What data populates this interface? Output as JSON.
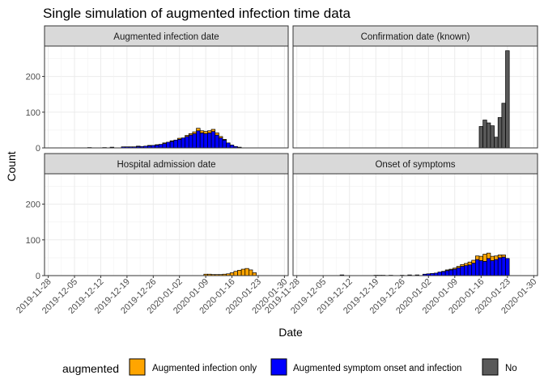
{
  "chart_data": {
    "type": "bar",
    "title": "Single simulation of augmented infection time data",
    "xlabel": "Date",
    "ylabel": "Count",
    "ylim": [
      0,
      285
    ],
    "yticks": [
      0,
      100,
      200
    ],
    "x_range": [
      "2019-11-27",
      "2020-01-31"
    ],
    "x_ticks": [
      "2019-11-28",
      "2019-12-05",
      "2019-12-12",
      "2019-12-19",
      "2019-12-26",
      "2020-01-02",
      "2020-01-09",
      "2020-01-16",
      "2020-01-23",
      "2020-01-30"
    ],
    "grid": true,
    "legend": {
      "title": "augmented",
      "placement": "bottom",
      "entries": [
        {
          "key": "augmented_infection_only",
          "label": "Augmented infection only",
          "color": "#FFA500"
        },
        {
          "key": "augmented_symptom_onset_and_infection",
          "label": "Augmented symptom onset and infection",
          "color": "#0000FF"
        },
        {
          "key": "no",
          "label": "No",
          "color": "#595959"
        }
      ]
    },
    "panels": [
      {
        "title": "Augmented infection date",
        "series": [
          {
            "name": "Augmented symptom onset and infection",
            "color": "#0000FF",
            "x": [
              "2019-12-09",
              "2019-12-13",
              "2019-12-15",
              "2019-12-18",
              "2019-12-19",
              "2019-12-20",
              "2019-12-21",
              "2019-12-22",
              "2019-12-23",
              "2019-12-24",
              "2019-12-25",
              "2019-12-26",
              "2019-12-27",
              "2019-12-28",
              "2019-12-29",
              "2019-12-30",
              "2019-12-31",
              "2020-01-01",
              "2020-01-02",
              "2020-01-03",
              "2020-01-04",
              "2020-01-05",
              "2020-01-06",
              "2020-01-07",
              "2020-01-08",
              "2020-01-09",
              "2020-01-10",
              "2020-01-11",
              "2020-01-12",
              "2020-01-13",
              "2020-01-14",
              "2020-01-15",
              "2020-01-16",
              "2020-01-17",
              "2020-01-18"
            ],
            "values": [
              1,
              1,
              2,
              3,
              3,
              3,
              3,
              4,
              4,
              5,
              6,
              7,
              8,
              10,
              12,
              16,
              18,
              22,
              24,
              28,
              32,
              36,
              40,
              48,
              42,
              40,
              42,
              46,
              36,
              28,
              22,
              14,
              8,
              4,
              2
            ]
          },
          {
            "name": "Augmented infection only",
            "color": "#FFA500",
            "x": [
              "2019-12-22",
              "2019-12-25",
              "2019-12-27",
              "2019-12-29",
              "2019-12-31",
              "2020-01-02",
              "2020-01-04",
              "2020-01-05",
              "2020-01-06",
              "2020-01-07",
              "2020-01-08",
              "2020-01-09",
              "2020-01-10",
              "2020-01-11",
              "2020-01-12",
              "2020-01-13",
              "2020-01-14"
            ],
            "values": [
              1,
              1,
              1,
              2,
              2,
              3,
              3,
              4,
              5,
              7,
              6,
              6,
              6,
              6,
              6,
              4,
              2
            ]
          }
        ]
      },
      {
        "title": "Confirmation date (known)",
        "series": [
          {
            "name": "No",
            "color": "#595959",
            "x": [
              "2020-01-16",
              "2020-01-17",
              "2020-01-18",
              "2020-01-19",
              "2020-01-20",
              "2020-01-21",
              "2020-01-22",
              "2020-01-23"
            ],
            "values": [
              60,
              78,
              70,
              62,
              30,
              85,
              125,
              272
            ]
          }
        ]
      },
      {
        "title": "Hospital admission date",
        "series": [
          {
            "name": "Augmented infection only",
            "color": "#FFA500",
            "x": [
              "2020-01-09",
              "2020-01-10",
              "2020-01-11",
              "2020-01-12",
              "2020-01-13",
              "2020-01-14",
              "2020-01-15",
              "2020-01-16",
              "2020-01-17",
              "2020-01-18",
              "2020-01-19",
              "2020-01-20",
              "2020-01-21",
              "2020-01-22"
            ],
            "values": [
              4,
              4,
              3,
              3,
              3,
              4,
              5,
              8,
              12,
              15,
              18,
              20,
              16,
              8
            ]
          }
        ]
      },
      {
        "title": "Onset of symptoms",
        "series": [
          {
            "name": "Augmented symptom onset and infection",
            "color": "#0000FF",
            "x": [
              "2019-12-10",
              "2019-12-19",
              "2019-12-20",
              "2019-12-21",
              "2019-12-23",
              "2019-12-26",
              "2019-12-28",
              "2019-12-30",
              "2020-01-01",
              "2020-01-02",
              "2020-01-03",
              "2020-01-04",
              "2020-01-05",
              "2020-01-06",
              "2020-01-07",
              "2020-01-08",
              "2020-01-09",
              "2020-01-10",
              "2020-01-11",
              "2020-01-12",
              "2020-01-13",
              "2020-01-14",
              "2020-01-15",
              "2020-01-16",
              "2020-01-17",
              "2020-01-18",
              "2020-01-19",
              "2020-01-20",
              "2020-01-21",
              "2020-01-22",
              "2020-01-23"
            ],
            "values": [
              2,
              1,
              1,
              1,
              1,
              1,
              2,
              2,
              4,
              5,
              6,
              7,
              10,
              11,
              14,
              16,
              18,
              22,
              26,
              28,
              30,
              35,
              45,
              42,
              40,
              48,
              42,
              45,
              50,
              52,
              48
            ]
          },
          {
            "name": "Augmented infection only",
            "color": "#FFA500",
            "x": [
              "2020-01-06",
              "2020-01-07",
              "2020-01-08",
              "2020-01-09",
              "2020-01-10",
              "2020-01-11",
              "2020-01-12",
              "2020-01-13",
              "2020-01-14",
              "2020-01-15",
              "2020-01-16",
              "2020-01-17",
              "2020-01-18",
              "2020-01-19",
              "2020-01-20",
              "2020-01-21",
              "2020-01-22"
            ],
            "values": [
              1,
              2,
              2,
              3,
              4,
              5,
              6,
              8,
              8,
              10,
              12,
              20,
              15,
              12,
              10,
              8,
              6
            ]
          }
        ]
      }
    ]
  }
}
